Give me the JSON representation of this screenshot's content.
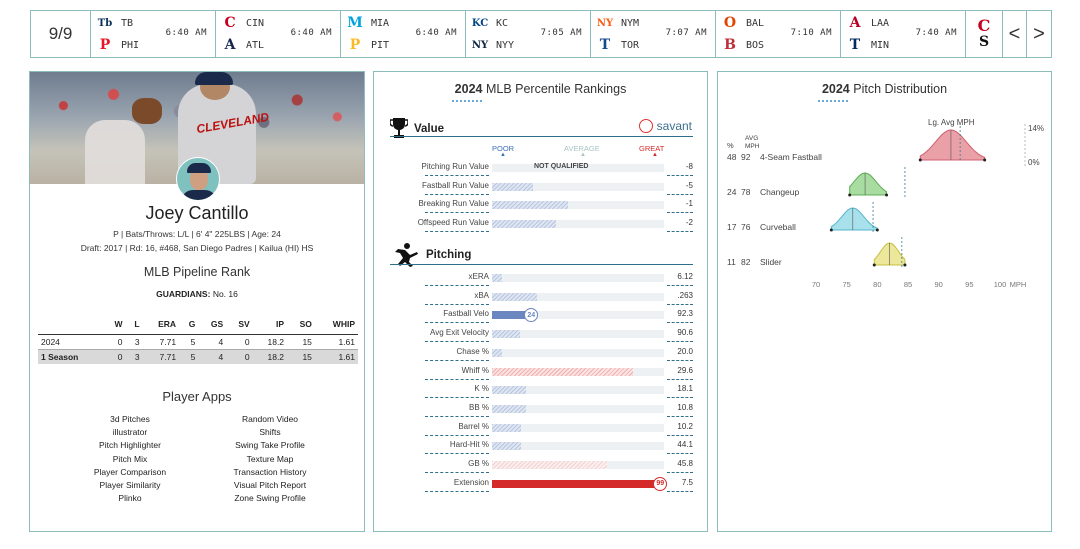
{
  "scoreboard": {
    "date": "9/9",
    "games": [
      {
        "away": "TB",
        "home": "PHI",
        "time": "6:40 AM",
        "away_color": "#092c5c",
        "home_color": "#e81828",
        "away_glyph": "Tb",
        "home_glyph": "P"
      },
      {
        "away": "CIN",
        "home": "ATL",
        "time": "6:40 AM",
        "away_color": "#c6011f",
        "home_color": "#13274f",
        "away_glyph": "C",
        "home_glyph": "A"
      },
      {
        "away": "MIA",
        "home": "PIT",
        "time": "6:40 AM",
        "away_color": "#00a3e0",
        "home_color": "#fdb827",
        "away_glyph": "M",
        "home_glyph": "P"
      },
      {
        "away": "KC",
        "home": "NYY",
        "time": "7:05 AM",
        "away_color": "#004687",
        "home_color": "#0c2340",
        "away_glyph": "KC",
        "home_glyph": "NY"
      },
      {
        "away": "NYM",
        "home": "TOR",
        "time": "7:07 AM",
        "away_color": "#ff5910",
        "home_color": "#134a8e",
        "away_glyph": "NY",
        "home_glyph": "T"
      },
      {
        "away": "BAL",
        "home": "BOS",
        "time": "7:10 AM",
        "away_color": "#df4601",
        "home_color": "#bd3039",
        "away_glyph": "O",
        "home_glyph": "B"
      },
      {
        "away": "LAA",
        "home": "MIN",
        "time": "7:40 AM",
        "away_color": "#ba0021",
        "home_color": "#002b5c",
        "away_glyph": "A",
        "home_glyph": "T"
      }
    ],
    "extra_glyph_top": "C",
    "extra_glyph_bottom": "S",
    "prev": "<",
    "next": ">"
  },
  "player": {
    "jersey_text": "CLEVELAND",
    "name": "Joey Cantillo",
    "line1": "P | Bats/Throws: L/L | 6' 4\" 225LBS | Age: 24",
    "line2": "Draft: 2017 | Rd: 16, #468, San Diego Padres | Kailua (HI) HS",
    "pipeline_title": "MLB Pipeline Rank",
    "pipeline_team": "GUARDIANS:",
    "pipeline_rank": "No. 16",
    "stats_headers": [
      "",
      "W",
      "L",
      "ERA",
      "G",
      "GS",
      "SV",
      "IP",
      "SO",
      "WHIP"
    ],
    "stats_rows": [
      [
        "2024",
        "0",
        "3",
        "7.71",
        "5",
        "4",
        "0",
        "18.2",
        "15",
        "1.61"
      ],
      [
        "1 Season",
        "0",
        "3",
        "7.71",
        "5",
        "4",
        "0",
        "18.2",
        "15",
        "1.61"
      ]
    ],
    "apps_title": "Player Apps",
    "apps": [
      "3d Pitches",
      "Random Video",
      "illustrator",
      "Shifts",
      "Pitch Highlighter",
      "Swing Take Profile",
      "Pitch Mix",
      "Texture Map",
      "Player Comparison",
      "Transaction History",
      "Player Similarity",
      "Visual Pitch Report",
      "Plinko",
      "Zone Swing Profile"
    ]
  },
  "percentile": {
    "title_year": "2024",
    "title_rest": "MLB Percentile Rankings",
    "savant": "savant",
    "scale": {
      "poor": "POOR",
      "average": "AVERAGE",
      "great": "GREAT"
    },
    "colors": {
      "poor": "#3d6fb6",
      "average": "#a9c4c4",
      "great": "#d42a2a"
    },
    "value_section": "Value",
    "value_rows": [
      {
        "label": "Pitching Run Value",
        "value": "-8",
        "pct": null,
        "note": "NOT QUALIFIED",
        "fill": 0.0
      },
      {
        "label": "Fastball Run Value",
        "value": "-5",
        "pct": null,
        "fill": 0.24
      },
      {
        "label": "Breaking Run Value",
        "value": "-1",
        "pct": null,
        "fill": 0.44
      },
      {
        "label": "Offspeed Run Value",
        "value": "-2",
        "pct": null,
        "fill": 0.37
      }
    ],
    "pitching_section": "Pitching",
    "pitching_rows": [
      {
        "label": "xERA",
        "value": "6.12",
        "fill": 0.06,
        "style": "hatch-blue"
      },
      {
        "label": "xBA",
        "value": ".263",
        "fill": 0.26,
        "style": "hatch-blue"
      },
      {
        "label": "Fastball Velo",
        "value": "92.3",
        "fill": 0.24,
        "style": "solid-blue",
        "pct": "24"
      },
      {
        "label": "Avg Exit Velocity",
        "value": "90.6",
        "fill": 0.16,
        "style": "hatch-blue"
      },
      {
        "label": "Chase %",
        "value": "20.0",
        "fill": 0.06,
        "style": "hatch-blue"
      },
      {
        "label": "Whiff %",
        "value": "29.6",
        "fill": 0.82,
        "style": "hatch-red"
      },
      {
        "label": "K %",
        "value": "18.1",
        "fill": 0.2,
        "style": "hatch-blue"
      },
      {
        "label": "BB %",
        "value": "10.8",
        "fill": 0.2,
        "style": "hatch-blue"
      },
      {
        "label": "Barrel %",
        "value": "10.2",
        "fill": 0.17,
        "style": "hatch-blue"
      },
      {
        "label": "Hard-Hit %",
        "value": "44.1",
        "fill": 0.17,
        "style": "hatch-blue"
      },
      {
        "label": "GB %",
        "value": "45.8",
        "fill": 0.67,
        "style": "hatch-lightred"
      },
      {
        "label": "Extension",
        "value": "7.5",
        "fill": 0.99,
        "style": "solid-red",
        "pct": "99"
      }
    ]
  },
  "pitch_distribution": {
    "title_year": "2024",
    "title_rest": "Pitch Distribution",
    "lg_avg_label": "Lg. Avg MPH",
    "col_pct": "%",
    "col_avg": "AVG",
    "col_mph": "MPH",
    "right_top": "14%",
    "right_bottom": "0%",
    "x_unit": "MPH",
    "x_ticks": [
      70,
      75,
      80,
      85,
      90,
      95,
      100
    ],
    "x_range": [
      70,
      100
    ],
    "pitches": [
      {
        "pct": "48",
        "mph": "92",
        "name": "4-Seam Fastball",
        "color": "#e9a0a6",
        "stroke": "#d06070",
        "center": 92.0,
        "spread": 2.5,
        "lg_avg": 93.5,
        "min": 87,
        "max": 97.5
      },
      {
        "pct": "24",
        "mph": "78",
        "name": "Changeup",
        "color": "#a8dca0",
        "stroke": "#5cae54",
        "center": 78.0,
        "spread": 1.8,
        "lg_avg": 84.5,
        "min": 75.5,
        "max": 81.5
      },
      {
        "pct": "17",
        "mph": "76",
        "name": "Curveball",
        "color": "#a8e0ec",
        "stroke": "#55b6cc",
        "center": 76.0,
        "spread": 1.8,
        "lg_avg": 79.3,
        "min": 72.5,
        "max": 80.0
      },
      {
        "pct": "11",
        "mph": "82",
        "name": "Slider",
        "color": "#ece79a",
        "stroke": "#c9bf3e",
        "center": 82.0,
        "spread": 1.5,
        "lg_avg": 84.0,
        "min": 79.5,
        "max": 84.5
      }
    ]
  }
}
